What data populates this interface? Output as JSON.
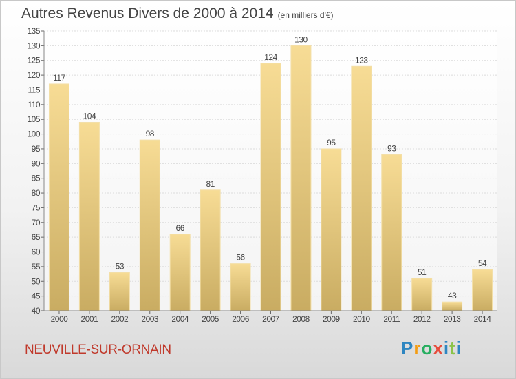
{
  "title": "Autres Revenus Divers de 2000 à 2014",
  "unit_note": "(en milliers d'€)",
  "city": "NEUVILLE-SUR-ORNAIN",
  "logo": {
    "text": "Proxiti",
    "letters": [
      {
        "char": "P",
        "color": "#2e86c1"
      },
      {
        "char": "r",
        "color": "#f39c12"
      },
      {
        "char": "o",
        "color": "#27ae60"
      },
      {
        "char": "x",
        "color": "#e74c3c"
      },
      {
        "char": "i",
        "color": "#2e86c1"
      },
      {
        "char": "t",
        "color": "#8bc34a"
      },
      {
        "char": "i",
        "color": "#2e86c1"
      }
    ]
  },
  "chart_data": {
    "type": "bar",
    "categories": [
      "2000",
      "2001",
      "2002",
      "2003",
      "2004",
      "2005",
      "2006",
      "2007",
      "2008",
      "2009",
      "2010",
      "2011",
      "2012",
      "2013",
      "2014"
    ],
    "values": [
      117,
      104,
      53,
      98,
      66,
      81,
      56,
      124,
      130,
      95,
      123,
      93,
      51,
      43,
      54
    ],
    "title": "Autres Revenus Divers de 2000 à 2014",
    "xlabel": "",
    "ylabel": "",
    "ylim": [
      40,
      135
    ],
    "yticks": [
      40,
      45,
      50,
      55,
      60,
      65,
      70,
      75,
      80,
      85,
      90,
      95,
      100,
      105,
      110,
      115,
      120,
      125,
      130,
      135
    ],
    "grid": true,
    "bar_color": "#e8c97a"
  }
}
